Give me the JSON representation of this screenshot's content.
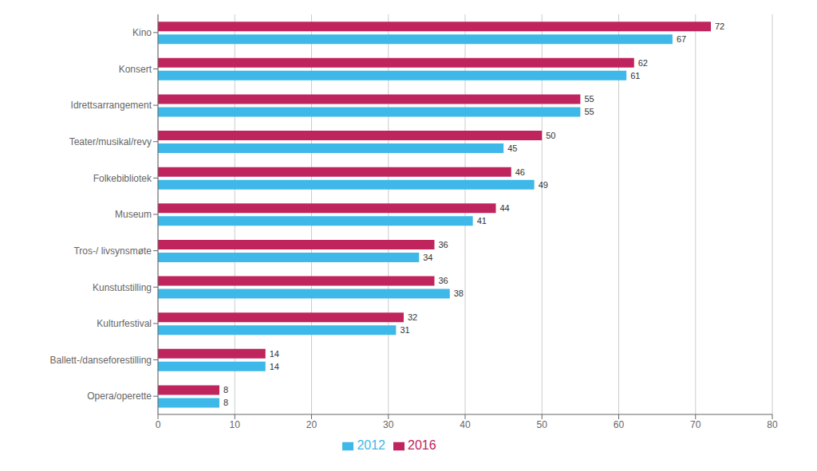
{
  "chart_data": {
    "type": "bar",
    "orientation": "horizontal",
    "categories": [
      "Kino",
      "Konsert",
      "Idrettsarrangement",
      "Teater/musikal/revy",
      "Folkebibliotek",
      "Museum",
      "Tros-/ livsynsmøte",
      "Kunstutstilling",
      "Kulturfestival",
      "Ballett-/danseforestilling",
      "Opera/operette"
    ],
    "series": [
      {
        "name": "2016",
        "color": "#c0245c",
        "values": [
          72,
          62,
          55,
          50,
          46,
          44,
          36,
          36,
          32,
          14,
          8
        ]
      },
      {
        "name": "2012",
        "color": "#3db8e8",
        "values": [
          67,
          61,
          55,
          45,
          49,
          41,
          34,
          38,
          31,
          14,
          8
        ]
      }
    ],
    "xlim": [
      0,
      80
    ],
    "xticks": [
      0,
      10,
      20,
      30,
      40,
      50,
      60,
      70,
      80
    ],
    "grid": true,
    "legend": "bottom",
    "data_labels": true
  }
}
